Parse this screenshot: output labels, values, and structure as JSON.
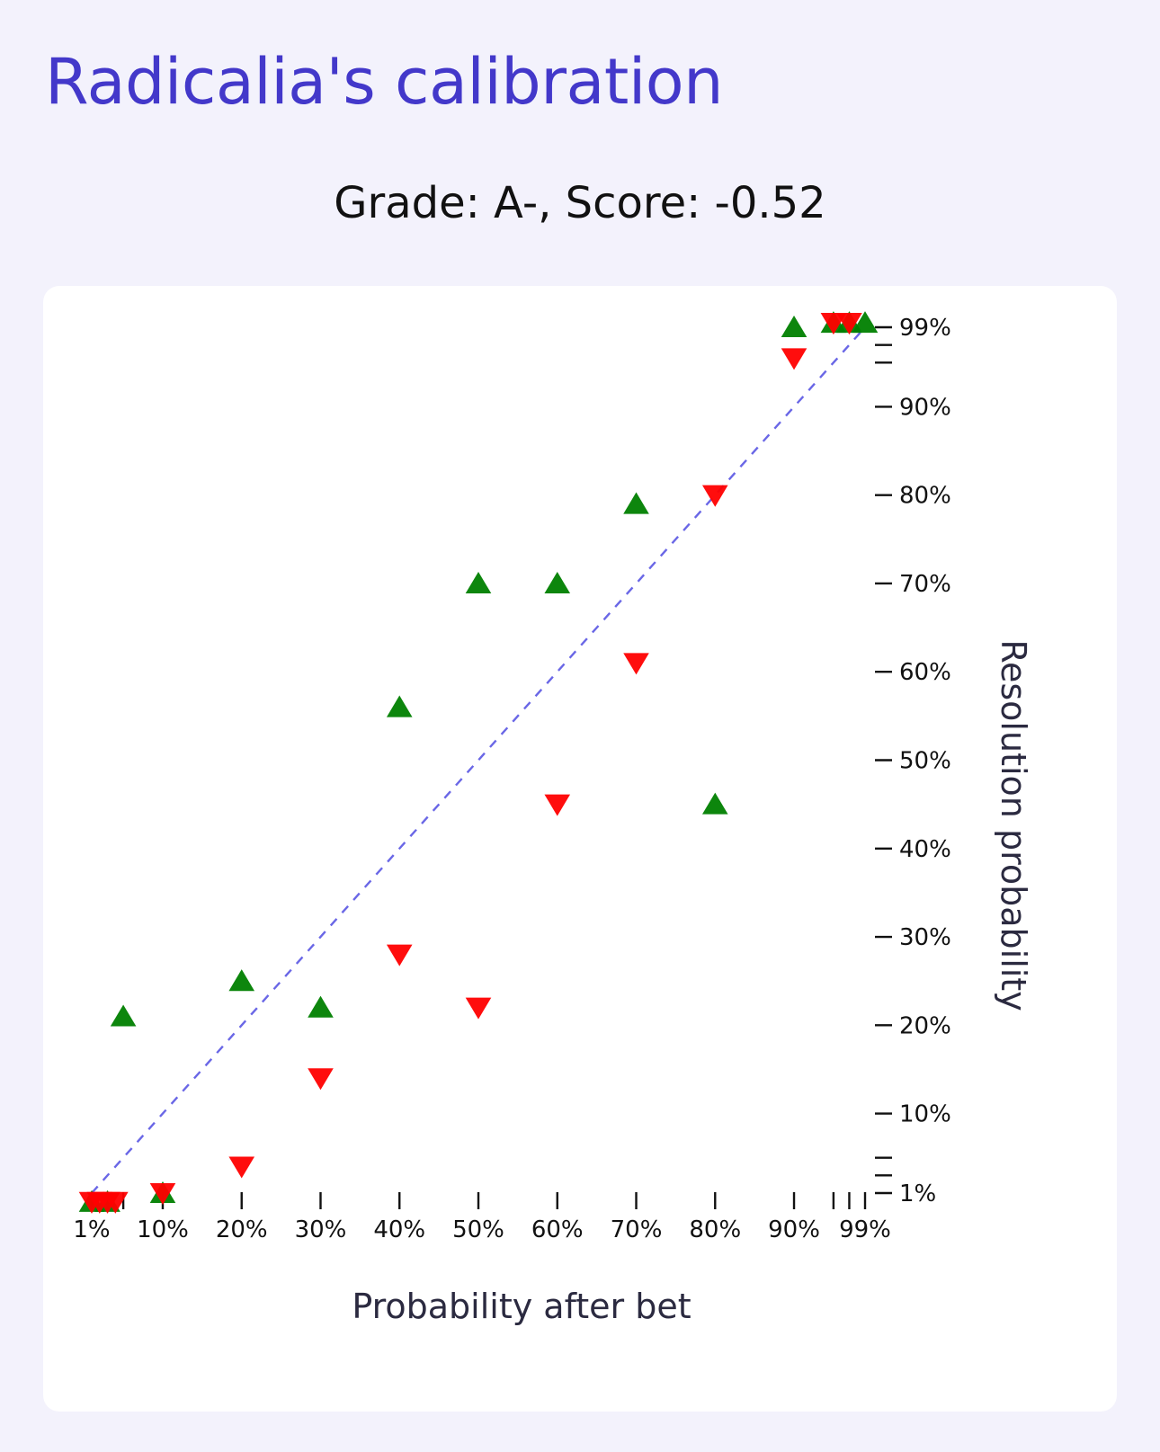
{
  "page": {
    "title": "Radicalia's calibration",
    "grade_line": "Grade: A-, Score: -0.52"
  },
  "colors": {
    "background": "#f3f2fc",
    "title": "#4338ca",
    "card": "#ffffff",
    "up_marker": "#008000",
    "down_marker": "#ff0000",
    "diagonal": "#6a67e6"
  },
  "chart_data": {
    "type": "scatter",
    "title": "Grade: A-, Score: -0.52",
    "xlabel": "Probability after bet",
    "ylabel": "Resolution probability",
    "xlim": [
      1,
      99
    ],
    "ylim": [
      1,
      99
    ],
    "x_ticks": [
      1,
      3,
      5,
      10,
      20,
      30,
      40,
      50,
      60,
      70,
      80,
      90,
      95,
      97,
      99
    ],
    "x_tick_labels": [
      "1%",
      "",
      "",
      "10%",
      "20%",
      "30%",
      "40%",
      "50%",
      "60%",
      "70%",
      "80%",
      "90%",
      "",
      "",
      "99%"
    ],
    "y_ticks": [
      1,
      3,
      5,
      10,
      20,
      30,
      40,
      50,
      60,
      70,
      80,
      90,
      95,
      97,
      99
    ],
    "y_tick_labels": [
      "1%",
      "",
      "",
      "10%",
      "20%",
      "30%",
      "40%",
      "50%",
      "60%",
      "70%",
      "80%",
      "90%",
      "",
      "",
      "99%"
    ],
    "diagonal": true,
    "grid": false,
    "legend": "none",
    "series": [
      {
        "marker": "triangle-up",
        "color": "#008000",
        "points": [
          {
            "x": 1,
            "y": 0
          },
          {
            "x": 3,
            "y": 0
          },
          {
            "x": 10,
            "y": 1
          },
          {
            "x": 5,
            "y": 21
          },
          {
            "x": 20,
            "y": 25
          },
          {
            "x": 30,
            "y": 22
          },
          {
            "x": 40,
            "y": 56
          },
          {
            "x": 50,
            "y": 70
          },
          {
            "x": 60,
            "y": 70
          },
          {
            "x": 70,
            "y": 79
          },
          {
            "x": 80,
            "y": 45
          },
          {
            "x": 90,
            "y": 99
          },
          {
            "x": 95,
            "y": 99.5
          },
          {
            "x": 97,
            "y": 99.5
          },
          {
            "x": 99,
            "y": 99.5
          }
        ]
      },
      {
        "marker": "triangle-down",
        "color": "#ff0000",
        "points": [
          {
            "x": 1,
            "y": 0
          },
          {
            "x": 2,
            "y": 0
          },
          {
            "x": 3,
            "y": 0
          },
          {
            "x": 4,
            "y": 0
          },
          {
            "x": 10,
            "y": 1
          },
          {
            "x": 20,
            "y": 4
          },
          {
            "x": 30,
            "y": 14
          },
          {
            "x": 40,
            "y": 28
          },
          {
            "x": 50,
            "y": 22
          },
          {
            "x": 60,
            "y": 45
          },
          {
            "x": 70,
            "y": 61
          },
          {
            "x": 80,
            "y": 80
          },
          {
            "x": 90,
            "y": 95.5
          },
          {
            "x": 95,
            "y": 99.5
          },
          {
            "x": 97,
            "y": 99.5
          }
        ]
      }
    ]
  }
}
